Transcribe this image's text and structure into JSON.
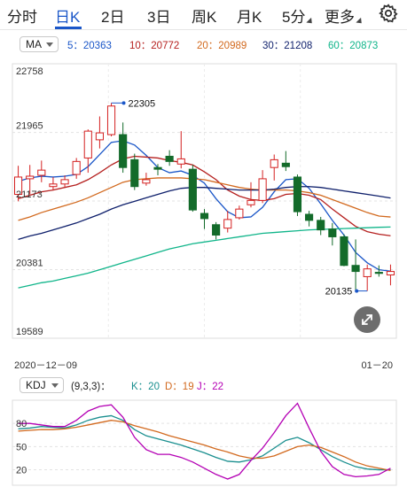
{
  "tabs": [
    {
      "label": "分时",
      "active": false
    },
    {
      "label": "日K",
      "active": true
    },
    {
      "label": "2日",
      "active": false
    },
    {
      "label": "3日",
      "active": false
    },
    {
      "label": "周K",
      "active": false
    },
    {
      "label": "月K",
      "active": false
    },
    {
      "label": "5分",
      "active": false
    },
    {
      "label": "更多",
      "active": false
    }
  ],
  "ma_selector": {
    "label": "MA"
  },
  "ma_values": [
    {
      "label": "5：20363",
      "color": "#1a56c8"
    },
    {
      "label": "10：20772",
      "color": "#b5201f"
    },
    {
      "label": "20：20989",
      "color": "#d2691e"
    },
    {
      "label": "30：21208",
      "color": "#0e1f6b"
    },
    {
      "label": "60：20873",
      "color": "#10b58a"
    }
  ],
  "kdj_selector": {
    "label": "KDJ"
  },
  "kdj_params": {
    "label": "(9,3,3)："
  },
  "kdj_values": [
    {
      "label": "K：20",
      "color": "#1a8f8f"
    },
    {
      "label": "D：19",
      "color": "#d2691e"
    },
    {
      "label": "J：22",
      "color": "#b400b4"
    }
  ],
  "chart_data": {
    "type": "candlestick",
    "y_ticks": [
      "22758",
      "21965",
      "21173",
      "20381",
      "19589"
    ],
    "ylim": [
      19589,
      22758
    ],
    "x_start_label": "2020－12－09",
    "x_end_label": "01－20",
    "max_annotation": "22305",
    "min_annotation": "20135",
    "up_color": "#d42020",
    "down_color": "#136b2a",
    "candles": [
      {
        "o": 21250,
        "h": 21580,
        "l": 21170,
        "c": 21450
      },
      {
        "o": 21430,
        "h": 21590,
        "l": 21250,
        "c": 21460
      },
      {
        "o": 21470,
        "h": 21640,
        "l": 21390,
        "c": 21530
      },
      {
        "o": 21340,
        "h": 21450,
        "l": 21300,
        "c": 21370
      },
      {
        "o": 21370,
        "h": 21470,
        "l": 21330,
        "c": 21420
      },
      {
        "o": 21480,
        "h": 21670,
        "l": 21430,
        "c": 21630
      },
      {
        "o": 21670,
        "h": 22000,
        "l": 21500,
        "c": 21980
      },
      {
        "o": 21880,
        "h": 22150,
        "l": 21780,
        "c": 21960
      },
      {
        "o": 21940,
        "h": 22305,
        "l": 21920,
        "c": 22270
      },
      {
        "o": 21940,
        "h": 22080,
        "l": 21500,
        "c": 21560
      },
      {
        "o": 21650,
        "h": 21720,
        "l": 21300,
        "c": 21340
      },
      {
        "o": 21380,
        "h": 21500,
        "l": 21350,
        "c": 21420
      },
      {
        "o": 21560,
        "h": 21600,
        "l": 21470,
        "c": 21540
      },
      {
        "o": 21690,
        "h": 21760,
        "l": 21580,
        "c": 21630
      },
      {
        "o": 21600,
        "h": 21980,
        "l": 21550,
        "c": 21660
      },
      {
        "o": 21540,
        "h": 21590,
        "l": 21050,
        "c": 21070
      },
      {
        "o": 21030,
        "h": 21080,
        "l": 20850,
        "c": 20970
      },
      {
        "o": 20900,
        "h": 20930,
        "l": 20730,
        "c": 20780
      },
      {
        "o": 20860,
        "h": 21060,
        "l": 20810,
        "c": 20960
      },
      {
        "o": 20980,
        "h": 21120,
        "l": 20960,
        "c": 21080
      },
      {
        "o": 21130,
        "h": 21390,
        "l": 21100,
        "c": 21180
      },
      {
        "o": 21180,
        "h": 21530,
        "l": 21150,
        "c": 21430
      },
      {
        "o": 21560,
        "h": 21710,
        "l": 21410,
        "c": 21650
      },
      {
        "o": 21610,
        "h": 21750,
        "l": 21520,
        "c": 21570
      },
      {
        "o": 21450,
        "h": 21480,
        "l": 21000,
        "c": 21050
      },
      {
        "o": 21020,
        "h": 21060,
        "l": 20880,
        "c": 20950
      },
      {
        "o": 20950,
        "h": 20990,
        "l": 20780,
        "c": 20840
      },
      {
        "o": 20850,
        "h": 20920,
        "l": 20660,
        "c": 20760
      },
      {
        "o": 20760,
        "h": 20790,
        "l": 20420,
        "c": 20430
      },
      {
        "o": 20430,
        "h": 20730,
        "l": 20140,
        "c": 20360
      },
      {
        "o": 20300,
        "h": 20440,
        "l": 20135,
        "c": 20390
      },
      {
        "o": 20350,
        "h": 20430,
        "l": 20300,
        "c": 20340
      },
      {
        "o": 20320,
        "h": 20440,
        "l": 20200,
        "c": 20360
      }
    ],
    "series": [
      {
        "color": "#1a56c8",
        "values": [
          21400,
          21440,
          21460,
          21450,
          21460,
          21480,
          21570,
          21710,
          21850,
          21870,
          21820,
          21700,
          21560,
          21500,
          21520,
          21470,
          21380,
          21200,
          21050,
          20980,
          20990,
          21100,
          21280,
          21420,
          21430,
          21320,
          21140,
          20950,
          20780,
          20580,
          20460,
          20380,
          20363
        ]
      },
      {
        "color": "#b5201f",
        "values": [
          21200,
          21240,
          21280,
          21300,
          21330,
          21360,
          21420,
          21500,
          21590,
          21660,
          21690,
          21680,
          21670,
          21640,
          21620,
          21590,
          21510,
          21420,
          21300,
          21230,
          21190,
          21180,
          21200,
          21250,
          21260,
          21240,
          21190,
          21080,
          20980,
          20880,
          20820,
          20790,
          20772
        ]
      },
      {
        "color": "#d2691e",
        "values": [
          20950,
          20990,
          21040,
          21080,
          21120,
          21160,
          21210,
          21270,
          21330,
          21390,
          21420,
          21430,
          21440,
          21440,
          21440,
          21430,
          21420,
          21390,
          21360,
          21330,
          21310,
          21300,
          21300,
          21300,
          21290,
          21270,
          21240,
          21190,
          21140,
          21090,
          21040,
          21000,
          20989
        ]
      },
      {
        "color": "#0e1f6b",
        "values": [
          20730,
          20770,
          20800,
          20840,
          20880,
          20920,
          20970,
          21020,
          21080,
          21130,
          21170,
          21210,
          21250,
          21290,
          21320,
          21330,
          21330,
          21320,
          21310,
          21300,
          21300,
          21300,
          21310,
          21330,
          21340,
          21340,
          21330,
          21310,
          21290,
          21270,
          21250,
          21230,
          21208
        ]
      },
      {
        "color": "#10b58a",
        "values": [
          20170,
          20200,
          20230,
          20250,
          20280,
          20310,
          20340,
          20380,
          20420,
          20460,
          20500,
          20540,
          20580,
          20620,
          20650,
          20680,
          20700,
          20720,
          20740,
          20760,
          20780,
          20800,
          20810,
          20820,
          20830,
          20840,
          20845,
          20850,
          20855,
          20860,
          20865,
          20870,
          20873
        ]
      }
    ],
    "kdj": {
      "y_ticks": [
        80,
        50,
        20
      ],
      "ylim": [
        0,
        110
      ],
      "K": [
        73,
        74,
        76,
        75,
        74,
        78,
        84,
        88,
        90,
        84,
        72,
        64,
        60,
        56,
        52,
        47,
        42,
        36,
        31,
        30,
        33,
        38,
        48,
        58,
        62,
        55,
        46,
        37,
        30,
        24,
        21,
        20,
        20
      ],
      "D": [
        70,
        71,
        72,
        72,
        73,
        75,
        78,
        81,
        84,
        82,
        77,
        73,
        69,
        64,
        60,
        56,
        52,
        47,
        43,
        38,
        35,
        35,
        38,
        44,
        50,
        52,
        49,
        43,
        37,
        30,
        25,
        22,
        19
      ],
      "J": [
        80,
        80,
        78,
        76,
        76,
        84,
        96,
        102,
        104,
        88,
        62,
        46,
        40,
        40,
        36,
        30,
        22,
        14,
        8,
        14,
        32,
        48,
        68,
        90,
        106,
        74,
        44,
        24,
        14,
        11,
        12,
        14,
        22
      ]
    }
  }
}
